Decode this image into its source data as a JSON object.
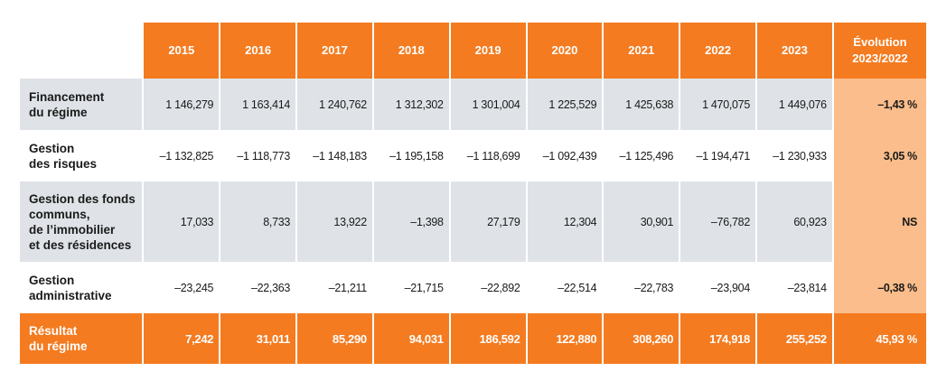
{
  "table": {
    "headers": [
      "2015",
      "2016",
      "2017",
      "2018",
      "2019",
      "2020",
      "2021",
      "2022",
      "2023"
    ],
    "evolution_header_line1": "Évolution",
    "evolution_header_line2": "2023/2022",
    "rows": [
      {
        "label_line1": "Financement",
        "label_line2": "du régime",
        "values": [
          "1 146,279",
          "1 163,414",
          "1 240,762",
          "1 312,302",
          "1 301,004",
          "1 225,529",
          "1 425,638",
          "1 470,075",
          "1 449,076"
        ],
        "evolution": "–1,43 %"
      },
      {
        "label_line1": "Gestion",
        "label_line2": "des risques",
        "values": [
          "–1 132,825",
          "–1 118,773",
          "–1 148,183",
          "–1 195,158",
          "–1 118,699",
          "–1 092,439",
          "–1 125,496",
          "–1 194,471",
          "–1 230,933"
        ],
        "evolution": "3,05 %"
      },
      {
        "label_line1": "Gestion des fonds",
        "label_line2": "communs,",
        "label_line3": "de l’immobilier",
        "label_line4": "et des résidences",
        "values": [
          "17,033",
          "8,733",
          "13,922",
          "–1,398",
          "27,179",
          "12,304",
          "30,901",
          "–76,782",
          "60,923"
        ],
        "evolution": "NS"
      },
      {
        "label_line1": "Gestion",
        "label_line2": "administrative",
        "values": [
          "–23,245",
          "–22,363",
          "–21,211",
          "–21,715",
          "–22,892",
          "–22,514",
          "–22,783",
          "–23,904",
          "–23,814"
        ],
        "evolution": "–0,38 %"
      },
      {
        "label_line1": "Résultat",
        "label_line2": "du régime",
        "values": [
          "7,242",
          "31,011",
          "85,290",
          "94,031",
          "186,592",
          "122,880",
          "308,260",
          "174,918",
          "255,252"
        ],
        "evolution": "45,93 %"
      }
    ]
  },
  "colors": {
    "header_orange": "#f47b20",
    "row_grey": "#dfe3e7",
    "evolution_light_orange": "#fbbd8b"
  }
}
